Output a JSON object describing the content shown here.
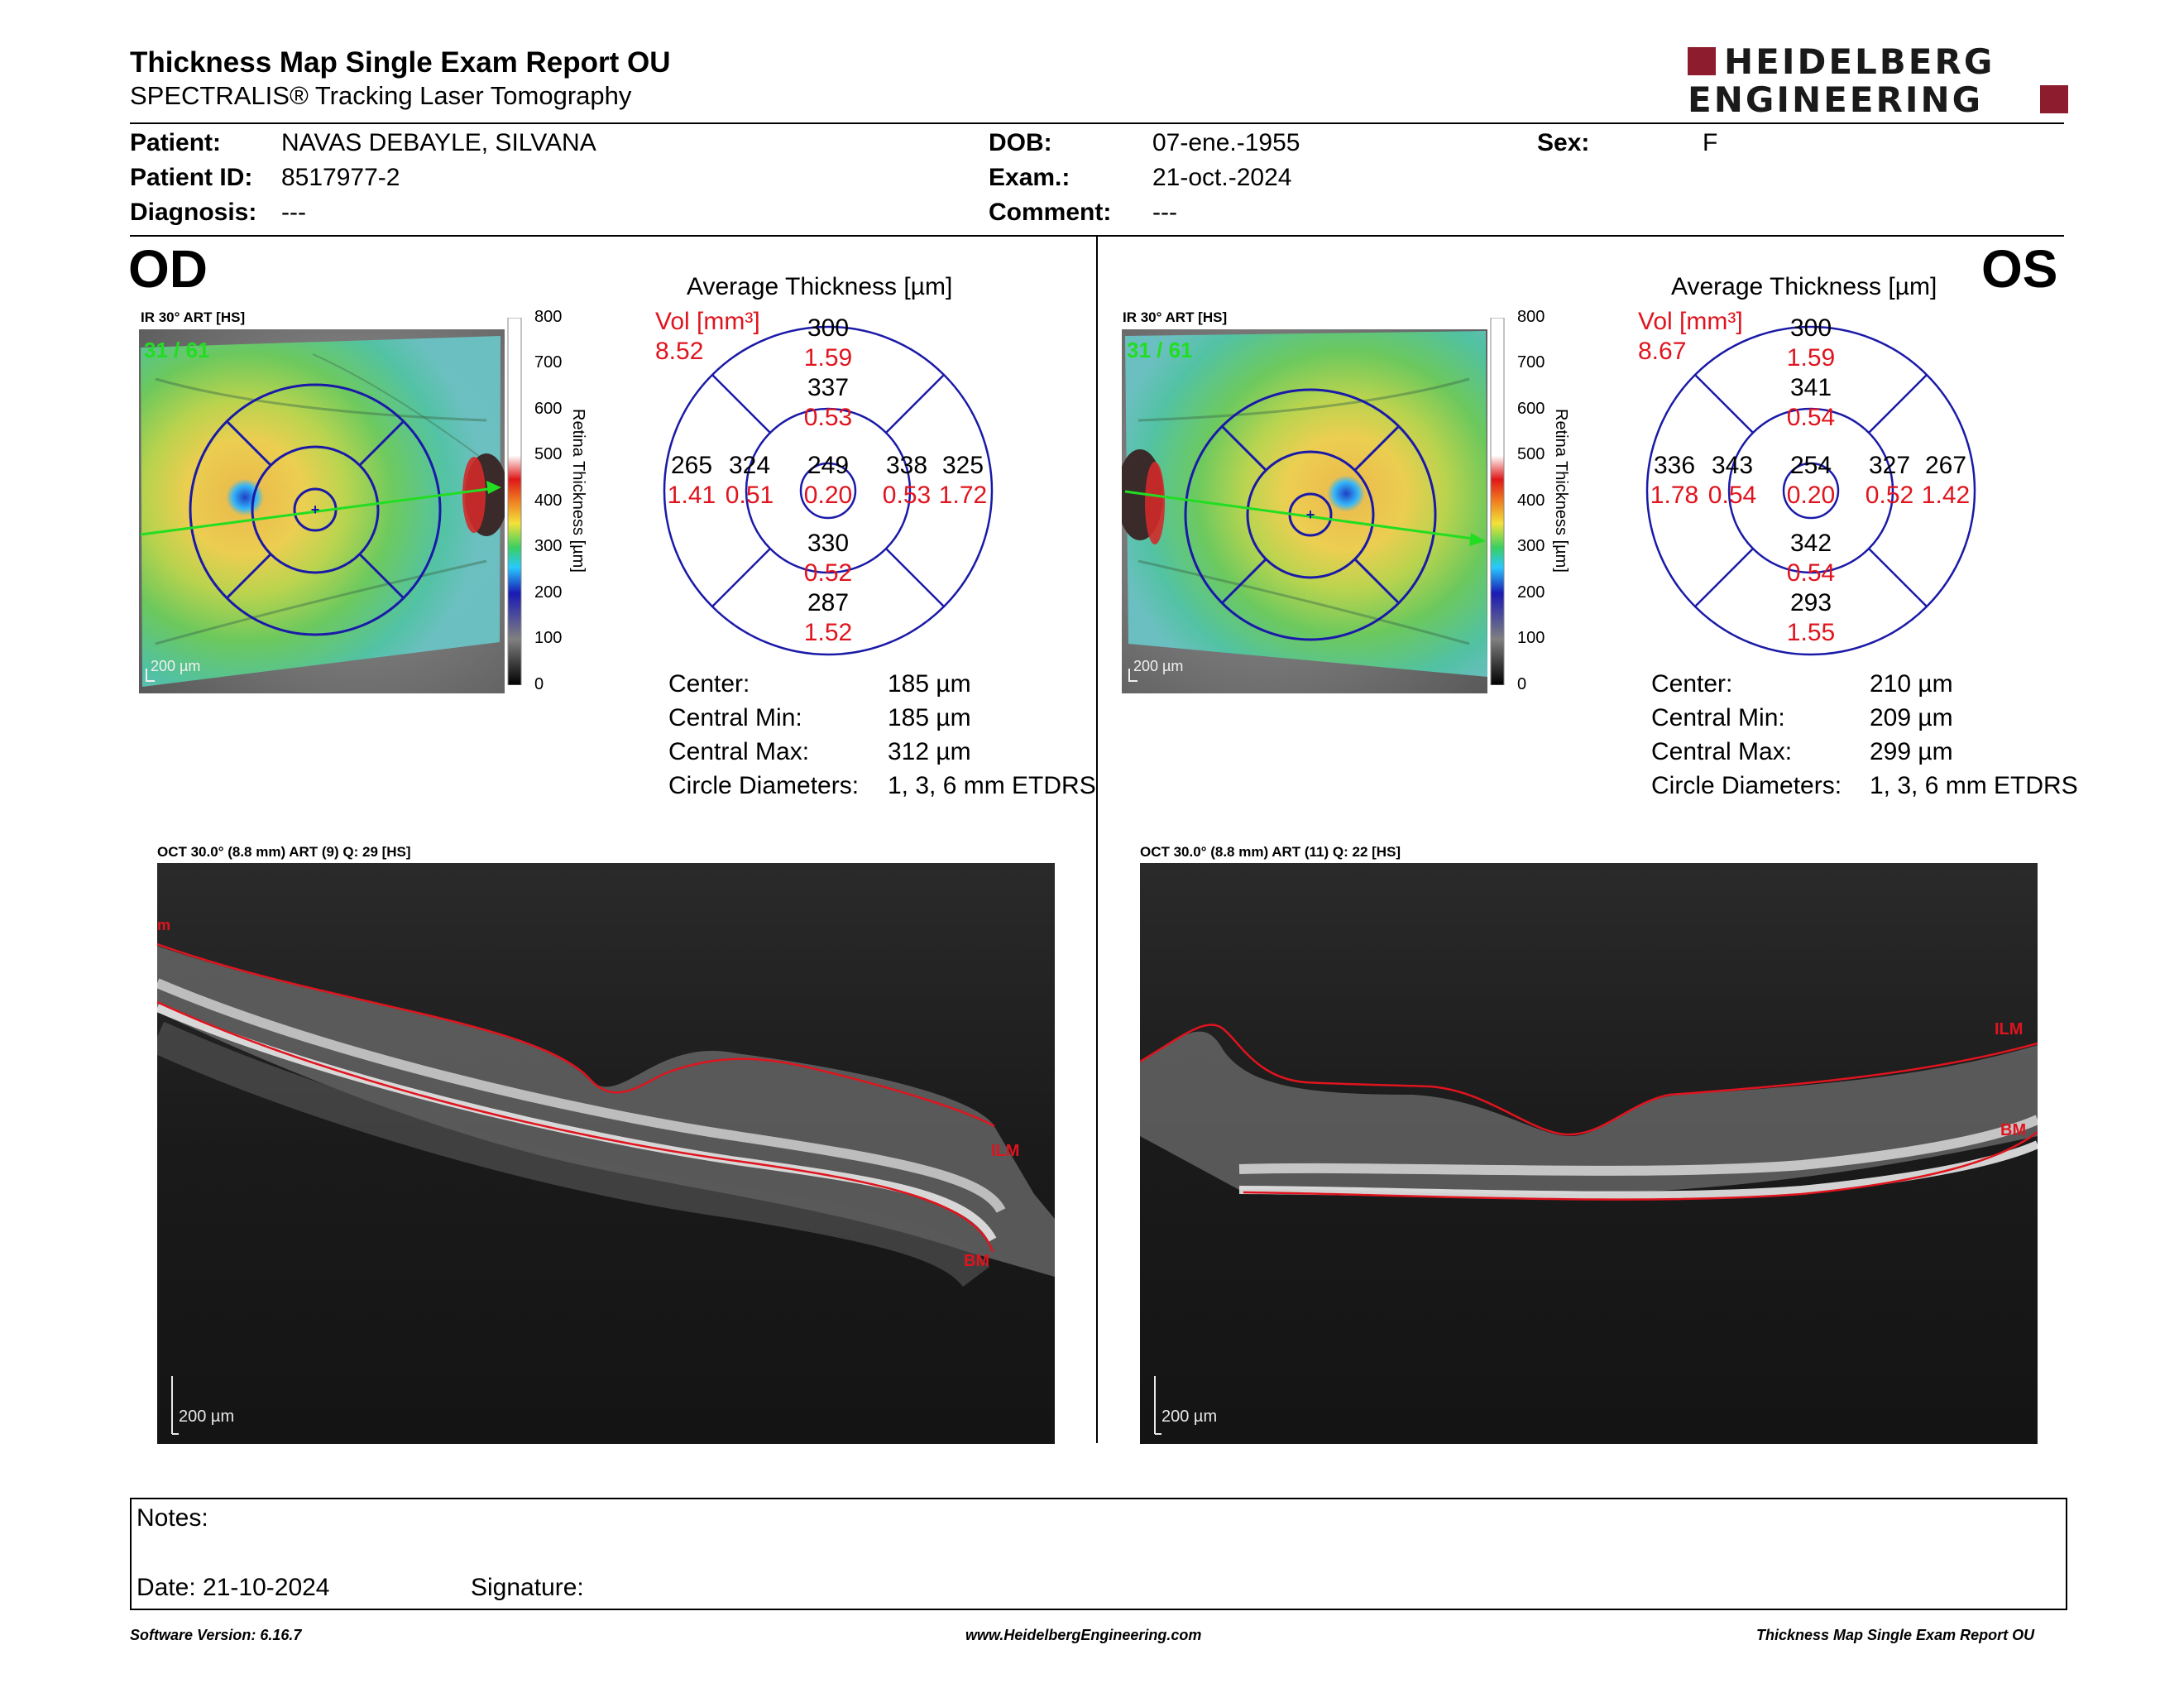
{
  "header": {
    "title": "Thickness Map Single Exam Report OU",
    "subtitle": "SPECTRALIS® Tracking Laser Tomography",
    "logo_line1": "HEIDELBERG",
    "logo_line2": "ENGINEERING"
  },
  "patient": {
    "patient_label": "Patient:",
    "patient_value": "NAVAS DEBAYLE, SILVANA",
    "id_label": "Patient ID:",
    "id_value": "8517977-2",
    "diagnosis_label": "Diagnosis:",
    "diagnosis_value": "---",
    "dob_label": "DOB:",
    "dob_value": "07-ene.-1955",
    "exam_label": "Exam.:",
    "exam_value": "21-oct.-2024",
    "comment_label": "Comment:",
    "comment_value": "---",
    "sex_label": "Sex:",
    "sex_value": "F"
  },
  "colorbar": {
    "title": "Retina Thickness [µm]",
    "ticks": [
      "800",
      "700",
      "600",
      "500",
      "400",
      "300",
      "200",
      "100",
      "0"
    ]
  },
  "od": {
    "eye_label": "OD",
    "fundus_label": "IR 30° ART [HS]",
    "fundus_counter": "31 / 61",
    "scale_label": "200 µm",
    "avg_title": "Average Thickness [µm]",
    "vol_label": "Vol [mm³]",
    "vol_value": "8.52",
    "grid": {
      "center": {
        "t": "249",
        "v": "0.20"
      },
      "inner_top": {
        "t": "337",
        "v": "0.53"
      },
      "inner_bottom": {
        "t": "330",
        "v": "0.52"
      },
      "inner_left": {
        "t": "324",
        "v": "0.51"
      },
      "inner_right": {
        "t": "338",
        "v": "0.53"
      },
      "outer_top": {
        "t": "300",
        "v": "1.59"
      },
      "outer_bottom": {
        "t": "287",
        "v": "1.52"
      },
      "outer_left": {
        "t": "265",
        "v": "1.41"
      },
      "outer_right": {
        "t": "325",
        "v": "1.72"
      }
    },
    "stats": {
      "center_label": "Center:",
      "center_value": "185 µm",
      "min_label": "Central Min:",
      "min_value": "185 µm",
      "max_label": "Central Max:",
      "max_value": "312 µm",
      "circle_label": "Circle Diameters:",
      "circle_value": "1, 3, 6 mm ETDRS"
    },
    "oct_label": "OCT 30.0° (8.8 mm) ART (9) Q: 29 [HS]",
    "oct_scale": "200 µm",
    "ilm_label": "ILM",
    "bm_label": "BM",
    "ilm_edge_label": "m"
  },
  "os": {
    "eye_label": "OS",
    "fundus_label": "IR 30° ART [HS]",
    "fundus_counter": "31 / 61",
    "scale_label": "200 µm",
    "avg_title": "Average Thickness [µm]",
    "vol_label": "Vol [mm³]",
    "vol_value": "8.67",
    "grid": {
      "center": {
        "t": "254",
        "v": "0.20"
      },
      "inner_top": {
        "t": "341",
        "v": "0.54"
      },
      "inner_bottom": {
        "t": "342",
        "v": "0.54"
      },
      "inner_left": {
        "t": "343",
        "v": "0.54"
      },
      "inner_right": {
        "t": "327",
        "v": "0.52"
      },
      "outer_top": {
        "t": "300",
        "v": "1.59"
      },
      "outer_bottom": {
        "t": "293",
        "v": "1.55"
      },
      "outer_left": {
        "t": "336",
        "v": "1.78"
      },
      "outer_right": {
        "t": "267",
        "v": "1.42"
      }
    },
    "stats": {
      "center_label": "Center:",
      "center_value": "210 µm",
      "min_label": "Central Min:",
      "min_value": "209 µm",
      "max_label": "Central Max:",
      "max_value": "299 µm",
      "circle_label": "Circle Diameters:",
      "circle_value": "1, 3, 6 mm ETDRS"
    },
    "oct_label": "OCT 30.0° (8.8 mm) ART (11) Q: 22 [HS]",
    "oct_scale": "200 µm",
    "ilm_label": "ILM",
    "bm_label": "BM"
  },
  "notes": {
    "notes_label": "Notes:",
    "date_label": "Date: 21-10-2024",
    "signature_label": "Signature:"
  },
  "footer": {
    "version": "Software Version: 6.16.7",
    "website": "www.HeidelbergEngineering.com",
    "report_name": "Thickness Map Single Exam Report OU"
  },
  "colors": {
    "grid_line": "#1a1aa8",
    "volume_red": "#e0141e",
    "segmentation_red": "#e0141e",
    "scan_arrow": "#22dd22",
    "logo_square": "#8c1c2e"
  }
}
